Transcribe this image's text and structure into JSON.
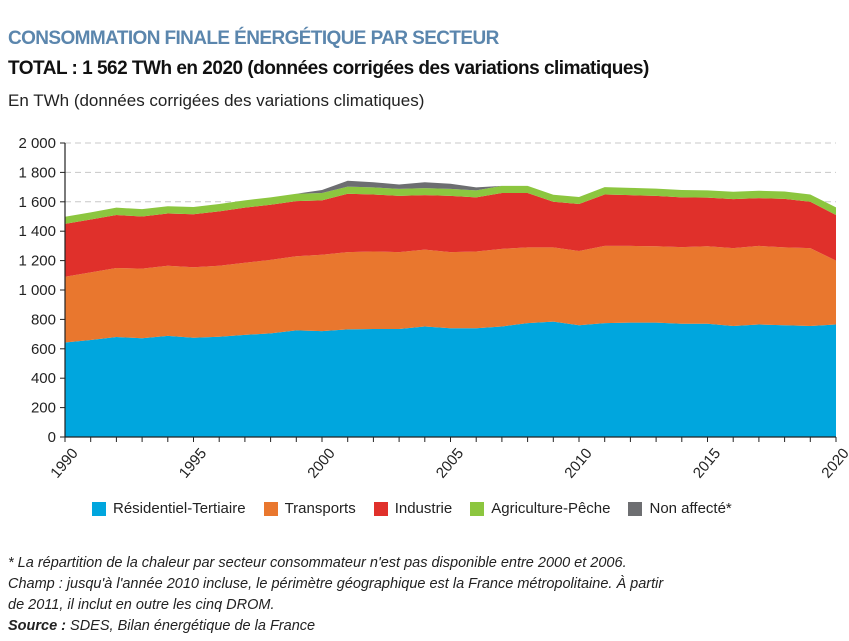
{
  "header": {
    "title": "CONSOMMATION FINALE ÉNERGÉTIQUE PAR SECTEUR",
    "subtitle": "TOTAL : 1 562 TWh en 2020 (données corrigées des variations climatiques)",
    "unit_label": "En TWh (données corrigées des variations climatiques)"
  },
  "chart_data": {
    "type": "area",
    "stacked": true,
    "title": "CONSOMMATION FINALE ÉNERGÉTIQUE PAR SECTEUR",
    "ylabel": "En TWh (données corrigées des variations climatiques)",
    "xlabel": "",
    "ylim": [
      0,
      2000
    ],
    "yticks": [
      0,
      200,
      400,
      600,
      800,
      1000,
      1200,
      1400,
      1600,
      1800,
      2000
    ],
    "ytick_labels": [
      "0",
      "200",
      "400",
      "600",
      "800",
      "1 000",
      "1 200",
      "1 400",
      "1 600",
      "1 800",
      "2 000"
    ],
    "xlim": [
      1990,
      2020
    ],
    "xticks": [
      1990,
      1995,
      2000,
      2005,
      2010,
      2015,
      2020
    ],
    "xtick_labels": [
      "1990",
      "1995",
      "2000",
      "2005",
      "2010",
      "2015",
      "2020"
    ],
    "grid": "horizontal dashed",
    "legend_position": "bottom",
    "x": [
      1990,
      1991,
      1992,
      1993,
      1994,
      1995,
      1996,
      1997,
      1998,
      1999,
      2000,
      2001,
      2002,
      2003,
      2004,
      2005,
      2006,
      2007,
      2008,
      2009,
      2010,
      2011,
      2012,
      2013,
      2014,
      2015,
      2016,
      2017,
      2018,
      2019,
      2020
    ],
    "series": [
      {
        "name": "Résidentiel-Tertiaire",
        "color": "#00a6de",
        "values": [
          643,
          660,
          680,
          672,
          688,
          675,
          682,
          695,
          705,
          725,
          720,
          732,
          735,
          735,
          752,
          740,
          740,
          752,
          775,
          785,
          760,
          775,
          778,
          778,
          770,
          770,
          755,
          765,
          760,
          755,
          765
        ]
      },
      {
        "name": "Transports",
        "color": "#e9772e",
        "values": [
          447,
          460,
          470,
          473,
          477,
          480,
          483,
          490,
          500,
          505,
          520,
          526,
          527,
          523,
          523,
          518,
          522,
          528,
          515,
          505,
          505,
          525,
          522,
          520,
          522,
          528,
          530,
          535,
          530,
          530,
          435
        ]
      },
      {
        "name": "Industrie",
        "color": "#e0302b",
        "values": [
          360,
          360,
          360,
          355,
          355,
          360,
          370,
          375,
          375,
          375,
          370,
          397,
          388,
          382,
          370,
          382,
          368,
          380,
          370,
          310,
          320,
          350,
          345,
          342,
          338,
          330,
          333,
          325,
          330,
          315,
          310
        ]
      },
      {
        "name": "Agriculture-Pêche",
        "color": "#8cc63f",
        "values": [
          48,
          48,
          50,
          50,
          50,
          50,
          50,
          50,
          50,
          50,
          50,
          48,
          48,
          48,
          48,
          48,
          48,
          48,
          48,
          48,
          48,
          50,
          50,
          50,
          50,
          50,
          50,
          50,
          50,
          50,
          52
        ]
      },
      {
        "name": "Non affecté*",
        "color": "#6d6e71",
        "values": [
          0,
          0,
          0,
          0,
          0,
          0,
          0,
          0,
          0,
          0,
          20,
          40,
          35,
          30,
          40,
          35,
          20,
          0,
          0,
          0,
          0,
          0,
          0,
          0,
          0,
          0,
          0,
          0,
          0,
          0,
          0
        ]
      }
    ]
  },
  "notes": {
    "line1": "* La répartition de la chaleur par secteur consommateur n'est pas disponible entre 2000 et 2006.",
    "line2": "Champ : jusqu'à l'année 2010 incluse, le périmètre géographique est la France métropolitaine. À partir",
    "line3": "de 2011, il inclut en outre les cinq DROM.",
    "source_label": "Source :",
    "source_text": " SDES, Bilan énergétique de la France"
  }
}
